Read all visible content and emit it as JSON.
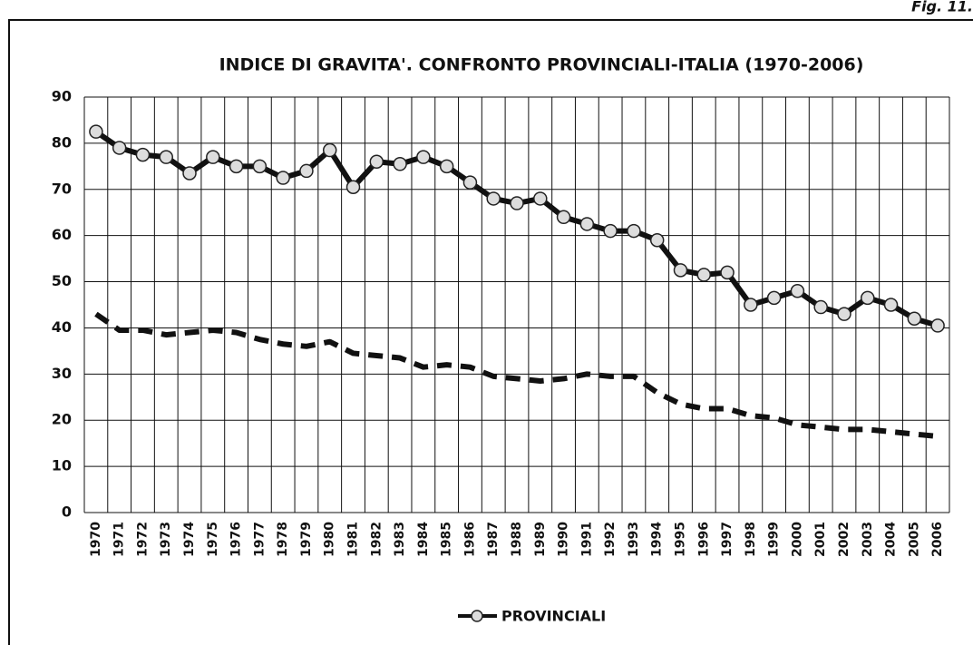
{
  "figure_label": "Fig. 11.",
  "chart_data": {
    "type": "line",
    "title": "INDICE DI GRAVITA'. CONFRONTO PROVINCIALI-ITALIA (1970-2006)",
    "categories": [
      "1970",
      "1971",
      "1972",
      "1973",
      "1974",
      "1975",
      "1976",
      "1977",
      "1978",
      "1979",
      "1980",
      "1981",
      "1982",
      "1983",
      "1984",
      "1985",
      "1986",
      "1987",
      "1988",
      "1989",
      "1990",
      "1991",
      "1992",
      "1993",
      "1994",
      "1995",
      "1996",
      "1997",
      "1998",
      "1999",
      "2000",
      "2001",
      "2002",
      "2003",
      "2004",
      "2005",
      "2006"
    ],
    "series": [
      {
        "name": "PROVINCIALI",
        "color": "#111111",
        "marker": "circle",
        "dash": false,
        "values": [
          82.5,
          79,
          77.5,
          77,
          73.5,
          77,
          75,
          75,
          72.5,
          74,
          78.5,
          70.5,
          76,
          75.5,
          77,
          75,
          71.5,
          68,
          67,
          68,
          64,
          62.5,
          61,
          61,
          59,
          52.5,
          51.5,
          52,
          45,
          46.5,
          48,
          44.5,
          43,
          46.5,
          45,
          42,
          40.5
        ]
      },
      {
        "color": "#111111",
        "dash": true,
        "values": [
          43,
          39.5,
          39.5,
          38.5,
          39,
          39.5,
          39,
          37.5,
          36.5,
          36,
          37,
          34.5,
          34,
          33.5,
          31.5,
          32,
          31.5,
          29.5,
          29,
          28.5,
          29,
          30,
          29.5,
          29.5,
          26,
          23.5,
          22.5,
          22.5,
          21,
          20.5,
          19,
          18.5,
          18,
          18,
          17.5,
          17,
          16.5
        ]
      }
    ],
    "ylim": [
      0,
      90
    ],
    "yticks": [
      0,
      10,
      20,
      30,
      40,
      50,
      60,
      70,
      80,
      90
    ],
    "grid": true,
    "legend": "bottom"
  }
}
